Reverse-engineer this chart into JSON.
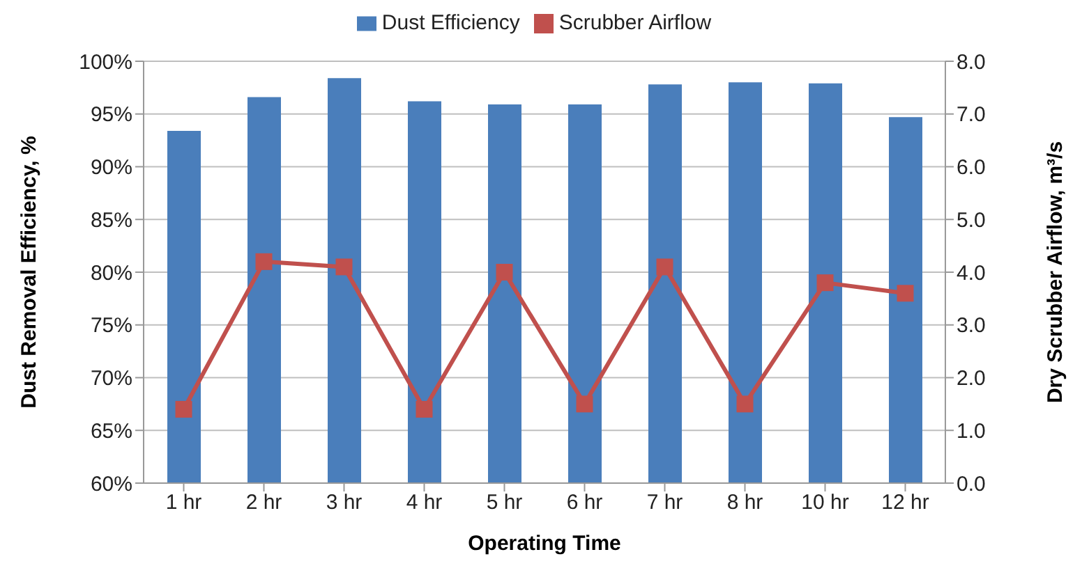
{
  "chart_data": {
    "type": "bar",
    "xlabel": "Operating Time",
    "ylabel": "Dust Removal Efficiency, %",
    "y2label": "Dry Scrubber Airflow, m³/s",
    "categories": [
      "1 hr",
      "2 hr",
      "3 hr",
      "4 hr",
      "5 hr",
      "6 hr",
      "7 hr",
      "8 hr",
      "10 hr",
      "12 hr"
    ],
    "series": [
      {
        "name": "Dust Efficiency",
        "color": "#4a7ebb",
        "values": [
          93.4,
          96.6,
          98.4,
          96.2,
          95.9,
          95.9,
          97.8,
          98.0,
          97.9,
          94.7
        ]
      },
      {
        "name": "Scrubber Airflow",
        "type": "line",
        "axis": "y2",
        "color": "#c0504d",
        "marker": "square",
        "values": [
          1.4,
          4.2,
          4.1,
          1.4,
          4.0,
          1.5,
          4.1,
          1.5,
          3.8,
          3.6
        ]
      }
    ],
    "ylim": [
      60,
      100
    ],
    "yticks": [
      {
        "value": 60,
        "label": "60%"
      },
      {
        "value": 65,
        "label": "65%"
      },
      {
        "value": 70,
        "label": "70%"
      },
      {
        "value": 75,
        "label": "75%"
      },
      {
        "value": 80,
        "label": "80%"
      },
      {
        "value": 85,
        "label": "85%"
      },
      {
        "value": 90,
        "label": "90%"
      },
      {
        "value": 95,
        "label": "95%"
      },
      {
        "value": 100,
        "label": "100%"
      }
    ],
    "y2lim": [
      0,
      8
    ],
    "y2ticks": [
      {
        "value": 0,
        "label": "0.0"
      },
      {
        "value": 1,
        "label": "1.0"
      },
      {
        "value": 2,
        "label": "2.0"
      },
      {
        "value": 3,
        "label": "3.0"
      },
      {
        "value": 4,
        "label": "4.0"
      },
      {
        "value": 5,
        "label": "5.0"
      },
      {
        "value": 6,
        "label": "6.0"
      },
      {
        "value": 7,
        "label": "7.0"
      },
      {
        "value": 8,
        "label": "8.0"
      }
    ],
    "grid": "y",
    "legend": "top"
  }
}
